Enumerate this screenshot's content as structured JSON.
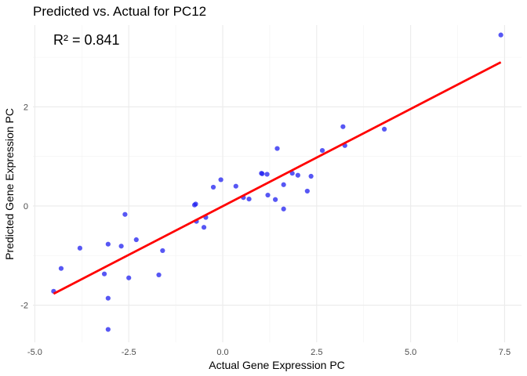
{
  "chart_data": {
    "type": "scatter",
    "title": "Predicted vs. Actual for PC12",
    "annotation": "R² = 0.841",
    "xlabel": "Actual Gene Expression PC",
    "ylabel": "Predicted Gene Expression PC",
    "xlim": [
      -5.05,
      7.95
    ],
    "ylim": [
      -2.75,
      3.65
    ],
    "x_ticks": [
      -5,
      -2.5,
      0,
      2.5,
      5,
      7.5
    ],
    "x_tick_labels": [
      "-5.0",
      "-2.5",
      "0.0",
      "2.5",
      "5.0",
      "7.5"
    ],
    "y_ticks": [
      -2,
      0,
      2
    ],
    "y_tick_labels": [
      "-2",
      "0",
      "2"
    ],
    "grid": true,
    "point_color": "#1f1ff0",
    "line_color": "#ff0000",
    "fit_line": {
      "x": [
        -4.5,
        7.4
      ],
      "y": [
        -1.77,
        2.9
      ]
    },
    "points": [
      {
        "x": -4.5,
        "y": -1.72
      },
      {
        "x": -4.3,
        "y": -1.26
      },
      {
        "x": -3.8,
        "y": -0.85
      },
      {
        "x": -3.15,
        "y": -1.37
      },
      {
        "x": -3.05,
        "y": -0.77
      },
      {
        "x": -3.05,
        "y": -1.86
      },
      {
        "x": -3.05,
        "y": -2.49
      },
      {
        "x": -2.7,
        "y": -0.81
      },
      {
        "x": -2.6,
        "y": -0.17
      },
      {
        "x": -2.5,
        "y": -1.45
      },
      {
        "x": -2.3,
        "y": -0.68
      },
      {
        "x": -1.7,
        "y": -1.39
      },
      {
        "x": -1.6,
        "y": -0.9
      },
      {
        "x": -0.75,
        "y": 0.02
      },
      {
        "x": -0.72,
        "y": 0.04
      },
      {
        "x": -0.7,
        "y": -0.31
      },
      {
        "x": -0.5,
        "y": -0.43
      },
      {
        "x": -0.45,
        "y": -0.23
      },
      {
        "x": -0.25,
        "y": 0.38
      },
      {
        "x": -0.05,
        "y": 0.53
      },
      {
        "x": 0.35,
        "y": 0.4
      },
      {
        "x": 0.55,
        "y": 0.17
      },
      {
        "x": 0.7,
        "y": 0.14
      },
      {
        "x": 1.03,
        "y": 0.66
      },
      {
        "x": 1.05,
        "y": 0.65
      },
      {
        "x": 1.18,
        "y": 0.64
      },
      {
        "x": 1.2,
        "y": 0.22
      },
      {
        "x": 1.4,
        "y": 0.13
      },
      {
        "x": 1.45,
        "y": 1.16
      },
      {
        "x": 1.62,
        "y": 0.43
      },
      {
        "x": 1.62,
        "y": -0.06
      },
      {
        "x": 1.85,
        "y": 0.66
      },
      {
        "x": 2.0,
        "y": 0.62
      },
      {
        "x": 2.25,
        "y": 0.3
      },
      {
        "x": 2.35,
        "y": 0.6
      },
      {
        "x": 2.65,
        "y": 1.12
      },
      {
        "x": 3.2,
        "y": 1.6
      },
      {
        "x": 3.25,
        "y": 1.22
      },
      {
        "x": 4.3,
        "y": 1.55
      },
      {
        "x": 7.4,
        "y": 3.45
      }
    ]
  }
}
